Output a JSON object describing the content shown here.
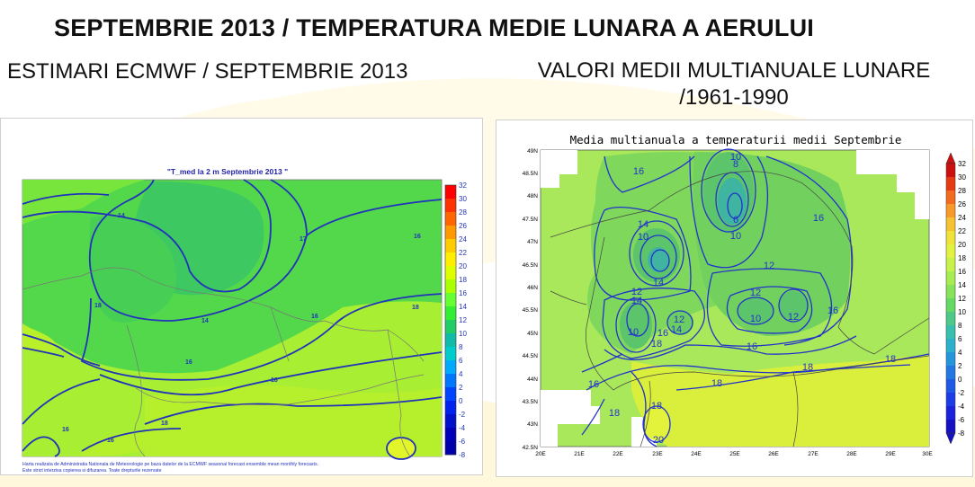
{
  "header": {
    "title": "SEPTEMBRIE 2013 / TEMPERATURA MEDIE LUNARA A AERULUI",
    "left_subtitle": "ESTIMARI ECMWF / SEPTEMBRIE 2013",
    "right_subtitle_line1": "VALORI MEDII MULTIANUALE LUNARE",
    "right_subtitle_line2": "/1961-1990"
  },
  "left_map": {
    "title": "\"T_med la 2 m Septembrie 2013 \"",
    "footer_line1": "Harta realizata de Administratia Nationala de Meteorologie pe baza datelor de la ECMWF seasonal forecast ensemble mean monthly forecasts.",
    "footer_line2": "Este strict interzisa copierea si difuzarea. Toate drepturile rezervate",
    "contour_labels": [
      "14",
      "17",
      "16",
      "18",
      "14",
      "16",
      "18",
      "16",
      "18",
      "16",
      "18",
      "16"
    ],
    "colorbar": {
      "labels": [
        "32",
        "30",
        "28",
        "26",
        "24",
        "22",
        "20",
        "18",
        "16",
        "14",
        "12",
        "10",
        "8",
        "6",
        "4",
        "2",
        "0",
        "-2",
        "-4",
        "-6",
        "-8"
      ],
      "colors": [
        "#ff0000",
        "#ff3300",
        "#ff6600",
        "#ff9900",
        "#ffcc00",
        "#ffee00",
        "#ddff00",
        "#aaff00",
        "#66ff33",
        "#33ee33",
        "#22cc66",
        "#11bbaa",
        "#00cccc",
        "#00aaff",
        "#0077ff",
        "#0044ff",
        "#0022ee",
        "#0011cc",
        "#0000bb",
        "#0000aa"
      ]
    }
  },
  "right_map": {
    "title": "Media multianuala a temperaturii medii Septembrie",
    "lat_labels": [
      "49N",
      "48.5N",
      "48N",
      "47.5N",
      "47N",
      "46.5N",
      "46N",
      "45.5N",
      "45N",
      "44.5N",
      "44N",
      "43.5N",
      "43N",
      "42.5N"
    ],
    "lon_labels": [
      "20E",
      "21E",
      "22E",
      "23E",
      "24E",
      "25E",
      "26E",
      "27E",
      "28E",
      "29E",
      "30E"
    ],
    "contour_labels": [
      "16",
      "10",
      "8",
      "6",
      "10",
      "16",
      "14",
      "10",
      "12",
      "14",
      "12",
      "14",
      "12",
      "10",
      "10",
      "12",
      "14",
      "12",
      "16",
      "16",
      "18",
      "16",
      "18",
      "18",
      "16",
      "18",
      "18",
      "20",
      "18"
    ],
    "colorbar": {
      "labels": [
        "32",
        "30",
        "28",
        "26",
        "24",
        "22",
        "20",
        "18",
        "16",
        "14",
        "12",
        "10",
        "8",
        "6",
        "4",
        "2",
        "0",
        "-2",
        "-4",
        "-6",
        "-8"
      ],
      "colors": [
        "#cc1010",
        "#e63a14",
        "#f26b1f",
        "#f79a2a",
        "#f5c234",
        "#eee23b",
        "#e1f242",
        "#c6f24a",
        "#a6ec52",
        "#86e35a",
        "#66d864",
        "#4ec98a",
        "#38bfae",
        "#2bb1cb",
        "#2696dc",
        "#2377e3",
        "#2058e6",
        "#1d3ce6",
        "#1a22dc",
        "#1510c2"
      ]
    }
  }
}
